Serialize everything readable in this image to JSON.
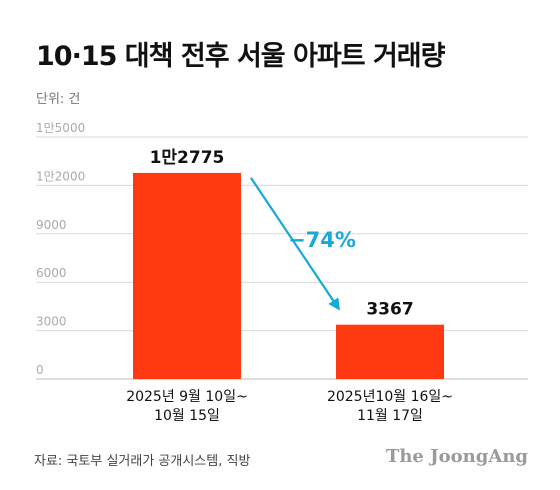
{
  "header": {
    "title": "10·15 대책 전후 서울 아파트 거래량",
    "unit": "단위: 건"
  },
  "footer": {
    "source": "자료: 국토부 실거래가 공개시스템, 직방",
    "brand": "The JoongAng"
  },
  "colors": {
    "bar": "#ff3a12",
    "arrow": "#1aa8d8",
    "grid": "#d9d9d9",
    "tick": "#aaaaaa"
  },
  "chart_data": {
    "type": "bar",
    "categories": [
      [
        "2025년 9월 10일~",
        "10월 15일"
      ],
      [
        "2025년10월 16일~",
        "11월 17일"
      ]
    ],
    "values": [
      12775,
      3367
    ],
    "value_labels": [
      "1만2775",
      "3367"
    ],
    "yticks": [
      {
        "value": 15000,
        "label": "1만5000"
      },
      {
        "value": 12000,
        "label": "1만2000"
      },
      {
        "value": 9000,
        "label": "9000"
      },
      {
        "value": 6000,
        "label": "6000"
      },
      {
        "value": 3000,
        "label": "3000"
      },
      {
        "value": 0,
        "label": "0"
      }
    ],
    "ylim": [
      0,
      15000
    ],
    "grid": true,
    "annotation": "−74%"
  }
}
